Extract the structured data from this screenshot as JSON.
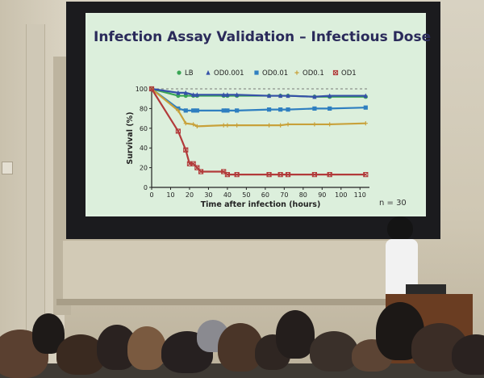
{
  "slide": {
    "title": "Infection Assay Validation – Infectious Dose",
    "note": "n = 30"
  },
  "chart_data": {
    "type": "line",
    "title": "Infection Assay Validation – Infectious Dose",
    "xlabel": "Time after infection (hours)",
    "ylabel": "Survival (%)",
    "xlim": [
      0,
      115
    ],
    "ylim": [
      0,
      100
    ],
    "xticks": [
      0,
      10,
      20,
      30,
      40,
      50,
      60,
      70,
      80,
      90,
      100,
      110
    ],
    "yticks": [
      0,
      20,
      40,
      60,
      80,
      100
    ],
    "legend_position": "top",
    "series": [
      {
        "name": "LB",
        "color": "#3aa655",
        "marker": "circle",
        "x": [
          0,
          14,
          18,
          22,
          24,
          38,
          40,
          45,
          62,
          68,
          72,
          86,
          94,
          113
        ],
        "y": [
          100,
          93,
          93,
          93,
          93,
          93,
          93,
          93,
          93,
          93,
          93,
          92,
          92,
          92
        ]
      },
      {
        "name": "OD0.001",
        "color": "#3550a8",
        "marker": "triangle",
        "x": [
          0,
          14,
          18,
          22,
          24,
          38,
          40,
          45,
          62,
          68,
          72,
          86,
          94,
          113
        ],
        "y": [
          100,
          96,
          96,
          94,
          94,
          94,
          94,
          94,
          93,
          93,
          93,
          92,
          93,
          93
        ]
      },
      {
        "name": "OD0.01",
        "color": "#2f7fc0",
        "marker": "square",
        "x": [
          0,
          14,
          18,
          22,
          24,
          38,
          40,
          45,
          62,
          68,
          72,
          86,
          94,
          113
        ],
        "y": [
          100,
          80,
          78,
          78,
          78,
          78,
          78,
          78,
          79,
          79,
          79,
          80,
          80,
          81
        ]
      },
      {
        "name": "OD0.1",
        "color": "#c8a13a",
        "marker": "plus",
        "x": [
          0,
          14,
          18,
          22,
          24,
          38,
          40,
          45,
          62,
          68,
          72,
          86,
          94,
          113
        ],
        "y": [
          100,
          78,
          65,
          64,
          62,
          63,
          63,
          63,
          63,
          63,
          64,
          64,
          64,
          65
        ]
      },
      {
        "name": "OD1",
        "color": "#b23a3a",
        "marker": "boxx",
        "x": [
          0,
          14,
          18,
          20,
          22,
          24,
          26,
          38,
          40,
          45,
          62,
          68,
          72,
          86,
          94,
          113
        ],
        "y": [
          100,
          57,
          38,
          24,
          24,
          20,
          16,
          16,
          13,
          13,
          13,
          13,
          13,
          13,
          13,
          13
        ]
      }
    ]
  }
}
